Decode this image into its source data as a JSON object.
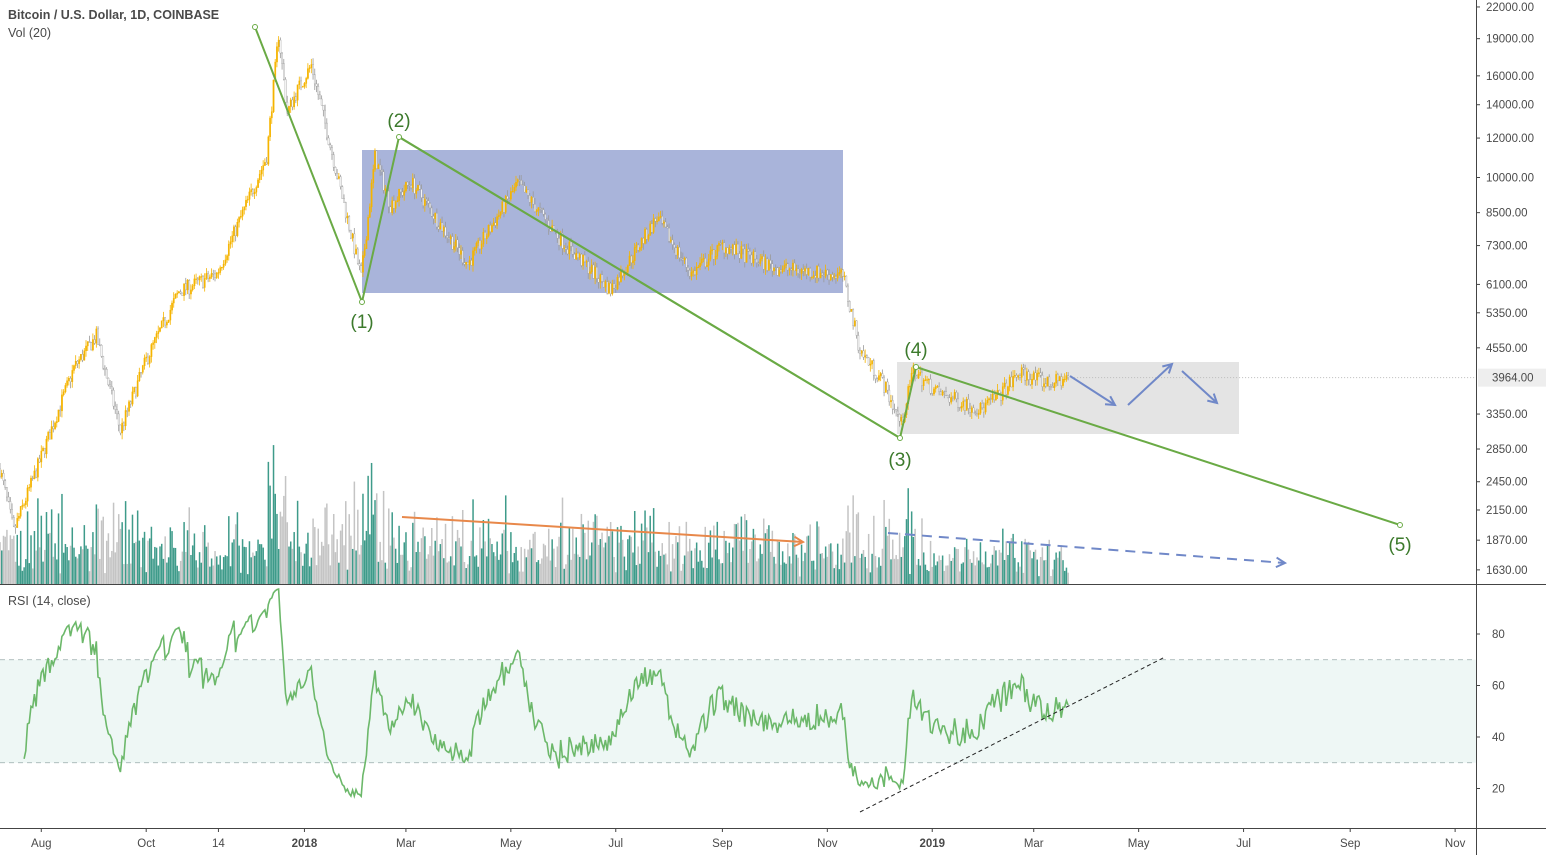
{
  "header": {
    "title": "Bitcoin / U.S. Dollar, 1D, COINBASE",
    "volume_label": "Vol (20)",
    "rsi_label": "RSI (14, close)"
  },
  "colors": {
    "up": "#f5b400",
    "down": "#9a9a9a",
    "vol_up": "#3e9b8a",
    "vol_down": "#c4c4c4",
    "wave": "#6aaa45",
    "rsi": "#6cb86a",
    "blue_box": "#8090c8",
    "gray_box": "#d8d8d8",
    "arrow_orange": "#e8884a",
    "arrow_blue": "#7088c8"
  },
  "chart_data": {
    "type": "candlestick",
    "title": "Bitcoin / U.S. Dollar, 1D, COINBASE",
    "scale": "log",
    "price_ticks": [
      "22000.00",
      "19000.00",
      "16000.00",
      "14000.00",
      "12000.00",
      "10000.00",
      "8500.00",
      "7300.00",
      "6100.00",
      "5350.00",
      "4550.00",
      "3350.00",
      "2850.00",
      "2450.00",
      "2150.00",
      "1870.00",
      "1630.00"
    ],
    "last_price": "3964.00",
    "time_ticks": [
      {
        "label": "Aug",
        "day": 24,
        "bold": false
      },
      {
        "label": "Oct",
        "day": 85,
        "bold": false
      },
      {
        "label": "14",
        "day": 127,
        "bold": false
      },
      {
        "label": "2018",
        "day": 177,
        "bold": true
      },
      {
        "label": "Mar",
        "day": 236,
        "bold": false
      },
      {
        "label": "May",
        "day": 297,
        "bold": false
      },
      {
        "label": "Jul",
        "day": 358,
        "bold": false
      },
      {
        "label": "Sep",
        "day": 420,
        "bold": false
      },
      {
        "label": "Nov",
        "day": 481,
        "bold": false
      },
      {
        "label": "2019",
        "day": 542,
        "bold": true
      },
      {
        "label": "Mar",
        "day": 601,
        "bold": false
      },
      {
        "label": "May",
        "day": 662,
        "bold": false
      },
      {
        "label": "Jul",
        "day": 723,
        "bold": false
      },
      {
        "label": "Sep",
        "day": 785,
        "bold": false
      },
      {
        "label": "Nov",
        "day": 846,
        "bold": false
      }
    ],
    "price_path": [
      [
        0,
        2600
      ],
      [
        8,
        1950
      ],
      [
        24,
        2750
      ],
      [
        43,
        4150
      ],
      [
        56,
        4800
      ],
      [
        70,
        3100
      ],
      [
        85,
        4300
      ],
      [
        104,
        5900
      ],
      [
        126,
        6400
      ],
      [
        155,
        11000
      ],
      [
        162,
        19400
      ],
      [
        167,
        13500
      ],
      [
        173,
        15000
      ],
      [
        181,
        16800
      ],
      [
        210,
        6300
      ],
      [
        218,
        11000
      ],
      [
        227,
        8800
      ],
      [
        239,
        9800
      ],
      [
        272,
        6700
      ],
      [
        301,
        9700
      ],
      [
        326,
        7500
      ],
      [
        355,
        5950
      ],
      [
        382,
        8300
      ],
      [
        402,
        6400
      ],
      [
        420,
        7300
      ],
      [
        450,
        6600
      ],
      [
        490,
        6350
      ],
      [
        500,
        4500
      ],
      [
        513,
        3900
      ],
      [
        524,
        3200
      ],
      [
        531,
        4100
      ],
      [
        545,
        3700
      ],
      [
        570,
        3420
      ],
      [
        580,
        3630
      ],
      [
        593,
        4050
      ],
      [
        610,
        3850
      ],
      [
        621,
        3964
      ]
    ],
    "rsi": {
      "levels": [
        80,
        60,
        40,
        20
      ],
      "upper_band": 70,
      "lower_band": 30,
      "period": 14
    },
    "wave_labels": [
      "(1)",
      "(2)",
      "(3)",
      "(4)",
      "(5)"
    ]
  }
}
